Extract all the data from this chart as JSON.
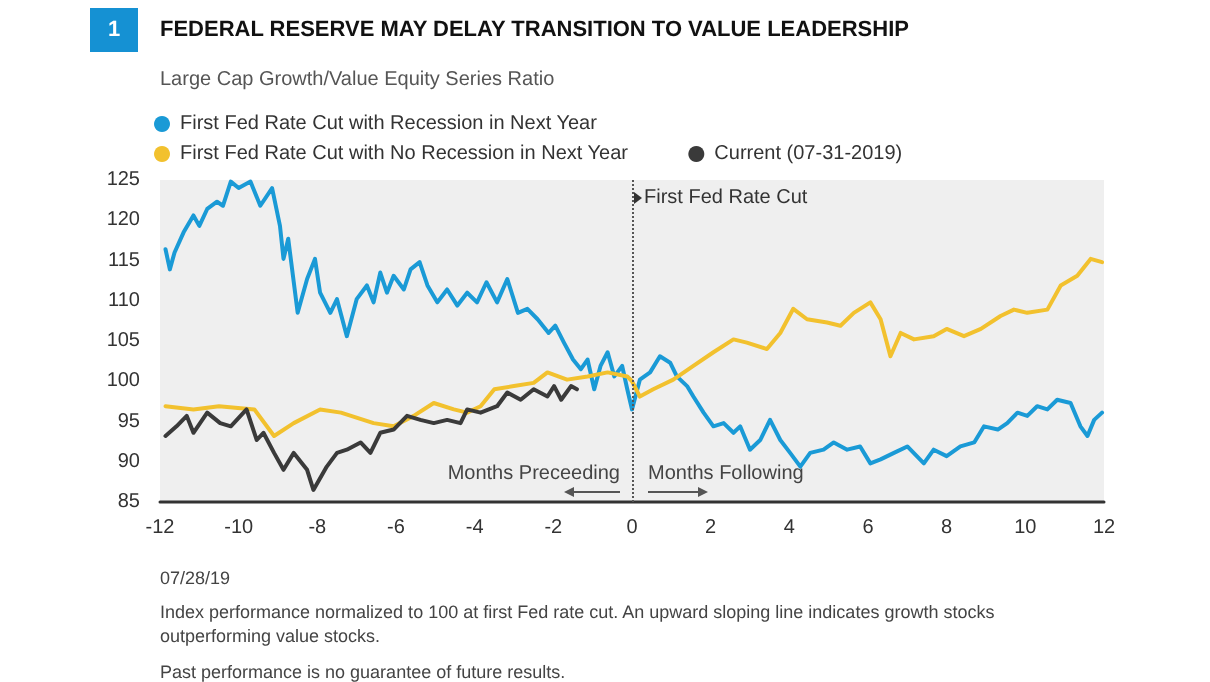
{
  "chart_data": {
    "type": "line",
    "title": "FEDERAL RESERVE MAY DELAY TRANSITION TO VALUE LEADERSHIP",
    "subtitle": "Large Cap Growth/Value Equity Series Ratio",
    "xlim": [
      -12,
      12
    ],
    "xticks": [
      -12,
      -10,
      -8,
      -6,
      -4,
      -2,
      0,
      2,
      4,
      6,
      8,
      10,
      12
    ],
    "ylim": [
      85,
      125
    ],
    "yticks": [
      85,
      90,
      95,
      100,
      105,
      110,
      115,
      120,
      125
    ],
    "grid": false,
    "legend": "top left",
    "marker": "none",
    "line_style": "solid",
    "ref_lines": [
      {
        "axis": "x",
        "value": 0,
        "label": "First Fed Rate Cut",
        "color": "#555555",
        "line_style": "dotted"
      }
    ],
    "annotations": [
      "1",
      "Months Preceeding",
      "Months Following",
      "07/28/19",
      "Index performance normalized to 100 at first Fed rate cut. An upward sloping line indicates growth stocks outperforming value stocks.",
      "Past performance is no guarantee of future results."
    ],
    "series": [
      {
        "name": "First Fed Rate Cut with Recession in Next Year",
        "color": "#1a9ad6",
        "x": [
          -11.86,
          -11.75,
          -11.63,
          -11.4,
          -11.15,
          -11,
          -10.8,
          -10.55,
          -10.4,
          -10.2,
          -10,
          -9.7,
          -9.45,
          -9.15,
          -8.95,
          -8.86,
          -8.74,
          -8.5,
          -8.26,
          -8.06,
          -7.93,
          -7.67,
          -7.5,
          -7.25,
          -7,
          -6.74,
          -6.57,
          -6.4,
          -6.23,
          -6.06,
          -5.8,
          -5.63,
          -5.4,
          -5.2,
          -4.95,
          -4.7,
          -4.44,
          -4.19,
          -3.94,
          -3.7,
          -3.43,
          -3.17,
          -2.9,
          -2.66,
          -2.4,
          -2.12,
          -1.95,
          -1.73,
          -1.5,
          -1.3,
          -1.13,
          -0.96,
          -0.8,
          -0.62,
          -0.45,
          -0.25,
          -0.12,
          0,
          0.2,
          0.46,
          0.71,
          0.97,
          1.14,
          1.4,
          1.56,
          1.82,
          2.07,
          2.33,
          2.58,
          2.75,
          3,
          3.26,
          3.51,
          3.77,
          4.02,
          4.28,
          4.53,
          4.87,
          5.13,
          5.47,
          5.8,
          6.06,
          6.32,
          6.66,
          7,
          7.42,
          7.67,
          8,
          8.35,
          8.7,
          8.95,
          9.3,
          9.54,
          9.8,
          10.05,
          10.3,
          10.56,
          10.81,
          11.15,
          11.4,
          11.58,
          11.75,
          11.95
        ],
        "values": [
          116.4,
          113.9,
          116,
          118.5,
          120.6,
          119.3,
          121.4,
          122.3,
          121.8,
          124.8,
          124,
          124.8,
          121.8,
          124,
          119.3,
          115.2,
          117.7,
          108.5,
          112.7,
          115.2,
          111,
          108.5,
          110.2,
          105.6,
          110.2,
          111.9,
          109.8,
          113.5,
          111,
          113.1,
          111.4,
          113.9,
          114.8,
          111.9,
          109.8,
          111.4,
          109.4,
          111,
          109.8,
          112.3,
          109.8,
          112.7,
          108.5,
          109,
          107.7,
          106,
          106.9,
          104.8,
          102.7,
          101.5,
          102.7,
          99,
          101.9,
          103.6,
          100.6,
          101.9,
          99,
          96.5,
          100.2,
          101.1,
          103.1,
          102.3,
          100.6,
          99.4,
          98.1,
          96.1,
          94.4,
          94.8,
          93.6,
          94.4,
          91.5,
          92.7,
          95.2,
          92.7,
          91.1,
          89.4,
          91.1,
          91.5,
          92.4,
          91.5,
          91.9,
          89.8,
          90.3,
          91.1,
          91.9,
          89.8,
          91.5,
          90.7,
          91.9,
          92.4,
          94.4,
          94,
          94.8,
          96.1,
          95.7,
          96.9,
          96.5,
          97.7,
          97.3,
          94.4,
          93.2,
          95.2,
          96.1
        ]
      },
      {
        "name": "First Fed Rate Cut with No Recession in Next Year",
        "color": "#f2c12e",
        "x": [
          -11.86,
          -11.15,
          -10.5,
          -9.6,
          -9.1,
          -8.6,
          -7.93,
          -7.4,
          -6.57,
          -6.06,
          -5.55,
          -5.04,
          -4.53,
          -4.19,
          -3.85,
          -3.5,
          -3,
          -2.5,
          -2.15,
          -1.65,
          -1.13,
          -0.62,
          -0.12,
          0,
          0.2,
          0.54,
          1.05,
          1.56,
          2.07,
          2.58,
          2.92,
          3.43,
          3.77,
          4.1,
          4.45,
          4.96,
          5.3,
          5.64,
          6.06,
          6.32,
          6.57,
          6.83,
          7.17,
          7.67,
          8,
          8.44,
          8.87,
          9.37,
          9.71,
          10.05,
          10.56,
          10.9,
          11.32,
          11.66,
          11.95
        ],
        "values": [
          96.9,
          96.5,
          96.9,
          96.5,
          93.2,
          94.8,
          96.5,
          96.1,
          94.8,
          94.4,
          95.7,
          97.3,
          96.5,
          96.1,
          96.9,
          99,
          99.4,
          99.8,
          101.1,
          100.2,
          100.6,
          101.1,
          100.6,
          100,
          98.1,
          99,
          100.2,
          101.9,
          103.6,
          105.2,
          104.8,
          104,
          106,
          109,
          107.7,
          107.3,
          106.9,
          108.5,
          109.8,
          107.7,
          103.1,
          106,
          105.2,
          105.6,
          106.5,
          105.6,
          106.5,
          108.1,
          108.9,
          108.5,
          108.9,
          111.9,
          113.1,
          115.2,
          114.8
        ]
      },
      {
        "name": "Current (07-31-2019)",
        "color": "#3a3a3a",
        "x": [
          -11.86,
          -11.58,
          -11.32,
          -11.15,
          -10.8,
          -10.47,
          -10.2,
          -9.8,
          -9.54,
          -9.37,
          -9.1,
          -8.86,
          -8.6,
          -8.26,
          -8.1,
          -7.76,
          -7.5,
          -7.25,
          -6.9,
          -6.65,
          -6.4,
          -6.06,
          -5.72,
          -5.38,
          -5.04,
          -4.7,
          -4.36,
          -4.19,
          -3.85,
          -3.43,
          -3.17,
          -2.83,
          -2.5,
          -2.15,
          -1.98,
          -1.8,
          -1.55,
          -1.4
        ],
        "values": [
          93.2,
          94.4,
          95.7,
          93.6,
          96.1,
          94.8,
          94.4,
          96.5,
          92.7,
          93.6,
          91.1,
          89,
          91.1,
          89,
          86.5,
          89.4,
          91.1,
          91.5,
          92.4,
          91.1,
          93.6,
          94,
          95.7,
          95.2,
          94.8,
          95.2,
          94.8,
          96.5,
          96.1,
          96.9,
          98.6,
          97.7,
          99,
          98.1,
          99.4,
          97.7,
          99.4,
          99
        ]
      }
    ]
  }
}
